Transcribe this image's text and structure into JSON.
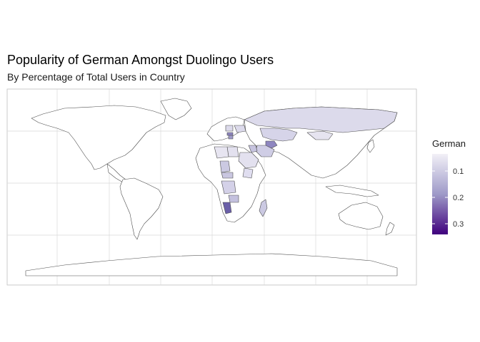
{
  "title": "Popularity of German Amongst Duolingo Users",
  "subtitle": "By Percentage of Total Users in Country",
  "legend": {
    "title": "German",
    "ticks": [
      0.1,
      0.2,
      0.3
    ],
    "domain": [
      0.02,
      0.34
    ],
    "colors": {
      "low": "#f2f0f7",
      "mid": "#9e9ac8",
      "high": "#3f007d",
      "na": "#ffffff"
    }
  },
  "chart_data": {
    "type": "choropleth",
    "variable": "German",
    "values": {
      "Namibia": 0.33,
      "Turkmenistan": 0.24,
      "Hungary": 0.25,
      "Serbia": 0.22,
      "Kazakhstan": 0.12,
      "Russia": 0.12,
      "Iraq": 0.12,
      "Iran": 0.11,
      "Saudi Arabia": 0.08,
      "Egypt": 0.08,
      "Mongolia": 0.07,
      "Chad": 0.14,
      "Central African Republic": 0.14,
      "DR Congo": 0.12,
      "Zambia": 0.15,
      "Madagascar": 0.15,
      "Ethiopia": 0.1,
      "Libya": 0.07,
      "Ukraine": 0.1,
      "Poland": 0.1
    }
  }
}
